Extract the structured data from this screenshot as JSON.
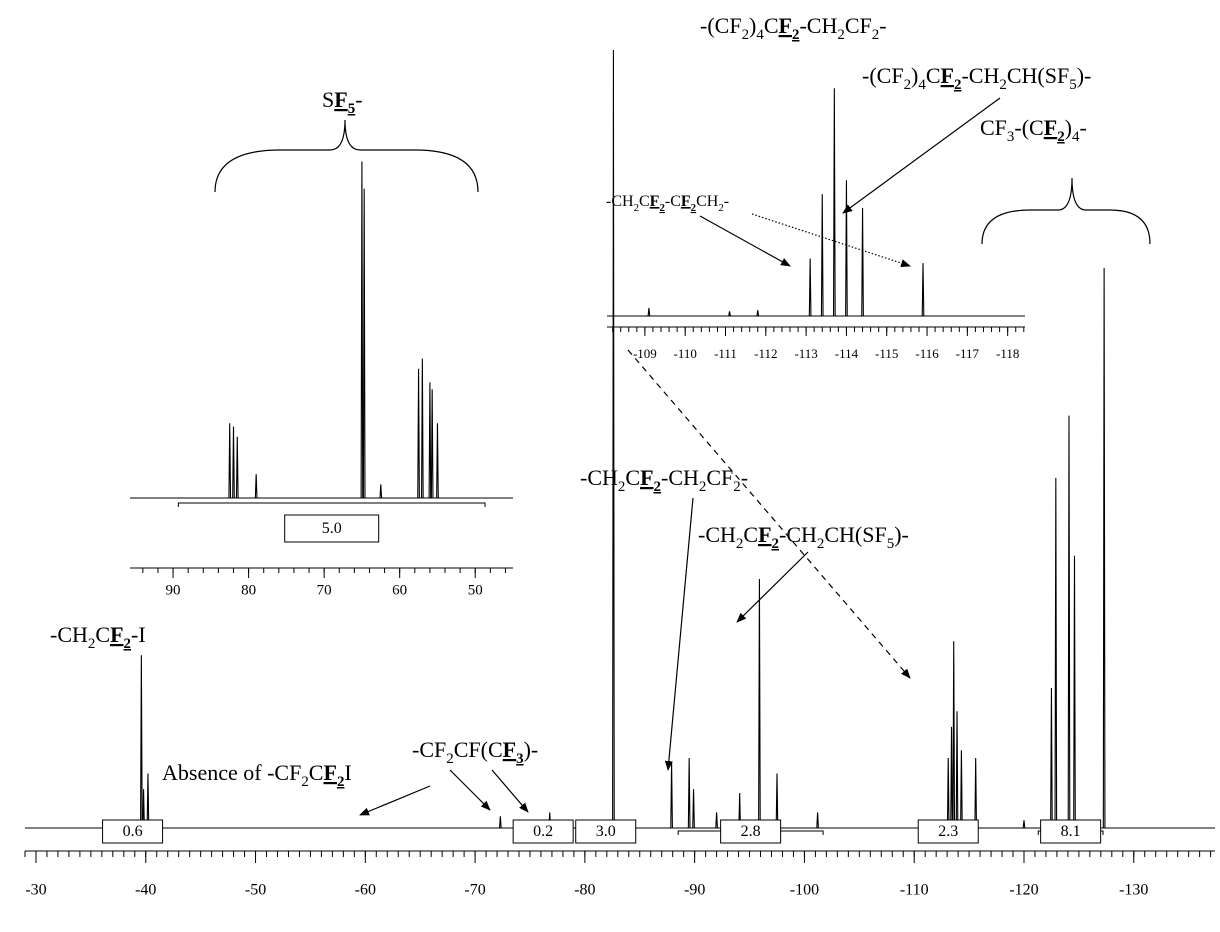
{
  "chart_data": [
    {
      "type": "spectrum",
      "color": "#000000",
      "x": [
        -39.6,
        -39.8,
        -40.2,
        -72.3,
        -76.8,
        -82.6,
        -87.9,
        -89.5,
        -89.9,
        -92.0,
        -94.1,
        -95.9,
        -97.5,
        -101.2,
        -113.1,
        -113.4,
        -113.6,
        -113.9,
        -114.3,
        -115.6,
        -120.0,
        -122.5,
        -122.9,
        -124.1,
        -124.6,
        -127.3
      ],
      "values": [
        22.2,
        5,
        7,
        1.5,
        2,
        100,
        8.5,
        9,
        5,
        2,
        4.5,
        32,
        7,
        2,
        9,
        13,
        24,
        15,
        10,
        9,
        1,
        18,
        45,
        53,
        35,
        72
      ],
      "xlim": [
        -29,
        -137.4
      ],
      "xticks": [
        -30,
        -40,
        -50,
        -60,
        -70,
        -80,
        -90,
        -100,
        -110,
        -120,
        -130
      ],
      "xminor_step": 1,
      "ylim": [
        0,
        100
      ],
      "integrals": {
        "values": [
          0.6,
          0.2,
          3.0,
          2.8,
          2.3,
          8.1
        ],
        "labels": [
          "0.6",
          "0.2",
          "3.0",
          "2.8",
          "2.3",
          "8.1"
        ],
        "ranges": [
          [
            -37.2,
            -40.4
          ],
          [
            -74.7,
            -77.7
          ],
          [
            -79.6,
            -84.2
          ],
          [
            -88.5,
            -101.7
          ],
          [
            -110.8,
            -115.4
          ],
          [
            -121.3,
            -127.2
          ]
        ]
      },
      "annotations": [
        {
          "parts": [
            "-(CF",
            "2",
            ")",
            "4",
            "C",
            "F",
            "2",
            "-CH",
            "2",
            "CF",
            "2",
            "-"
          ],
          "styles": [
            "",
            "s",
            "",
            "s",
            "",
            "b",
            "bs",
            "",
            "s",
            "",
            "s",
            ""
          ]
        },
        {
          "parts": [
            "-(CF",
            "2",
            ")",
            "4",
            "C",
            "F",
            "2",
            "-CH",
            "2",
            "CH(SF",
            "5",
            ")-"
          ],
          "styles": [
            "",
            "s",
            "",
            "s",
            "",
            "b",
            "bs",
            "",
            "s",
            "",
            "s",
            ""
          ]
        },
        {
          "parts": [
            "CF",
            "3",
            "-(C",
            "F",
            "2",
            ")",
            "4",
            "-"
          ],
          "styles": [
            "",
            "s",
            "",
            "b",
            "bs",
            "",
            "s",
            ""
          ]
        },
        {
          "parts": [
            "-CH",
            "2",
            "C",
            "F",
            "2",
            "-CH",
            "2",
            "CF",
            "2",
            "-"
          ],
          "styles": [
            "",
            "s",
            "",
            "b",
            "bs",
            "",
            "s",
            "",
            "s",
            ""
          ]
        },
        {
          "parts": [
            "-CH",
            "2",
            "C",
            "F",
            "2",
            "-CH",
            "2",
            "CH(SF",
            "5",
            ")-"
          ],
          "styles": [
            "",
            "s",
            "",
            "b",
            "bs",
            "",
            "s",
            "",
            "s",
            ""
          ]
        },
        {
          "parts": [
            "-CH",
            "2",
            "C",
            "F",
            "2",
            "-I"
          ],
          "styles": [
            "",
            "s",
            "",
            "b",
            "bs",
            ""
          ]
        },
        {
          "parts": [
            "-CF",
            "2",
            "CF(C",
            "F",
            "3",
            ")-"
          ],
          "styles": [
            "",
            "s",
            "",
            "b",
            "bs",
            ""
          ]
        },
        {
          "parts": [
            "Absence of -CF",
            "2",
            "C",
            "F",
            "2",
            "I"
          ],
          "styles": [
            "",
            "s",
            "",
            "b",
            "bs",
            ""
          ]
        }
      ]
    },
    {
      "type": "spectrum",
      "color": "#000000",
      "x": [
        82.5,
        82.0,
        81.5,
        79.0,
        65.0,
        64.7,
        62.5,
        57.5,
        57.0,
        56.0,
        55.7,
        55.0
      ],
      "values": [
        22,
        21,
        18,
        7,
        99,
        91,
        4,
        38,
        41,
        34,
        32,
        22
      ],
      "xlim": [
        95.7,
        45
      ],
      "xticks": [
        90,
        80,
        70,
        60,
        50
      ],
      "xminor_step": 2,
      "ylim": [
        0,
        100
      ],
      "integrals": {
        "values": [
          5.0
        ],
        "labels": [
          "5.0"
        ],
        "ranges": [
          [
            89.3,
            48.7
          ]
        ]
      },
      "annotations": [
        {
          "parts": [
            "S",
            "F",
            "5",
            "-"
          ],
          "styles": [
            "",
            "b",
            "bs",
            ""
          ]
        }
      ]
    },
    {
      "type": "spectrum",
      "color": "#000000",
      "x": [
        -109.1,
        -111.1,
        -111.8,
        -113.1,
        -113.4,
        -113.7,
        -114.0,
        -114.4,
        -115.9
      ],
      "values": [
        3.5,
        2,
        2.5,
        25,
        53,
        99,
        59,
        47,
        23
      ],
      "xlim": [
        -108.06,
        -118.43
      ],
      "xticks": [
        -109,
        -110,
        -111,
        -112,
        -113,
        -114,
        -115,
        -116,
        -117,
        -118
      ],
      "xminor_step": 0.2,
      "ylim": [
        0,
        100
      ],
      "annotations": [
        {
          "parts": [
            "-CH",
            "2",
            "C",
            "F",
            "2",
            "-C",
            "F",
            "2",
            "CH",
            "2",
            "-"
          ],
          "styles": [
            "",
            "s",
            "",
            "b",
            "bs",
            "",
            "b",
            "bs",
            "",
            "s",
            ""
          ]
        }
      ]
    }
  ]
}
